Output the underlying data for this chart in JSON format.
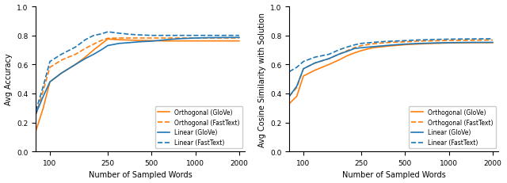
{
  "x": [
    80,
    90,
    100,
    120,
    150,
    175,
    200,
    225,
    250,
    300,
    350,
    400,
    450,
    500,
    600,
    700,
    800,
    1000,
    1200,
    1500,
    2000
  ],
  "left_orth_glove": [
    0.14,
    0.3,
    0.48,
    0.54,
    0.6,
    0.65,
    0.7,
    0.74,
    0.775,
    0.77,
    0.768,
    0.766,
    0.765,
    0.764,
    0.762,
    0.762,
    0.762,
    0.762,
    0.762,
    0.762,
    0.762
  ],
  "left_orth_fasttext": [
    0.25,
    0.42,
    0.58,
    0.63,
    0.67,
    0.71,
    0.74,
    0.765,
    0.78,
    0.782,
    0.782,
    0.782,
    0.782,
    0.782,
    0.782,
    0.782,
    0.782,
    0.782,
    0.782,
    0.782,
    0.782
  ],
  "left_lin_glove": [
    0.26,
    0.38,
    0.48,
    0.54,
    0.6,
    0.64,
    0.67,
    0.7,
    0.73,
    0.745,
    0.75,
    0.755,
    0.758,
    0.76,
    0.768,
    0.774,
    0.778,
    0.782,
    0.784,
    0.785,
    0.786
  ],
  "left_lin_fasttext": [
    0.28,
    0.45,
    0.62,
    0.67,
    0.72,
    0.77,
    0.8,
    0.81,
    0.825,
    0.815,
    0.808,
    0.804,
    0.802,
    0.8,
    0.8,
    0.8,
    0.8,
    0.8,
    0.8,
    0.8,
    0.8
  ],
  "right_orth_glove": [
    0.33,
    0.38,
    0.52,
    0.56,
    0.6,
    0.63,
    0.66,
    0.68,
    0.695,
    0.715,
    0.722,
    0.728,
    0.732,
    0.736,
    0.74,
    0.743,
    0.745,
    0.748,
    0.749,
    0.75,
    0.75
  ],
  "right_orth_fasttext": [
    0.38,
    0.44,
    0.57,
    0.61,
    0.64,
    0.67,
    0.695,
    0.715,
    0.73,
    0.742,
    0.748,
    0.752,
    0.754,
    0.756,
    0.76,
    0.762,
    0.763,
    0.765,
    0.766,
    0.767,
    0.768
  ],
  "right_lin_glove": [
    0.38,
    0.45,
    0.57,
    0.61,
    0.64,
    0.67,
    0.69,
    0.71,
    0.715,
    0.722,
    0.728,
    0.733,
    0.737,
    0.74,
    0.744,
    0.746,
    0.748,
    0.75,
    0.751,
    0.752,
    0.752
  ],
  "right_lin_fasttext": [
    0.55,
    0.58,
    0.62,
    0.65,
    0.67,
    0.7,
    0.72,
    0.735,
    0.745,
    0.752,
    0.757,
    0.76,
    0.762,
    0.764,
    0.768,
    0.77,
    0.772,
    0.774,
    0.775,
    0.776,
    0.777
  ],
  "color_orange": "#ff7f0e",
  "color_blue": "#1f77b4",
  "left_ylabel": "Avg Accuracy",
  "right_ylabel": "Avg Cosine Similarity with Solution",
  "xlabel": "Number of Sampled Words",
  "ylim": [
    0.0,
    1.0
  ],
  "yticks": [
    0.0,
    0.2,
    0.4,
    0.6,
    0.8,
    1.0
  ],
  "legend_entries": [
    "Orthogonal (GloVe)",
    "Orthogonal (FastText)",
    "Linear (GloVe)",
    "Linear (FastText)"
  ],
  "xticks": [
    100,
    250,
    500,
    1000,
    2000
  ],
  "xlim_left": 80,
  "xlim_right": 2200,
  "figsize": [
    6.4,
    2.32
  ],
  "dpi": 100
}
